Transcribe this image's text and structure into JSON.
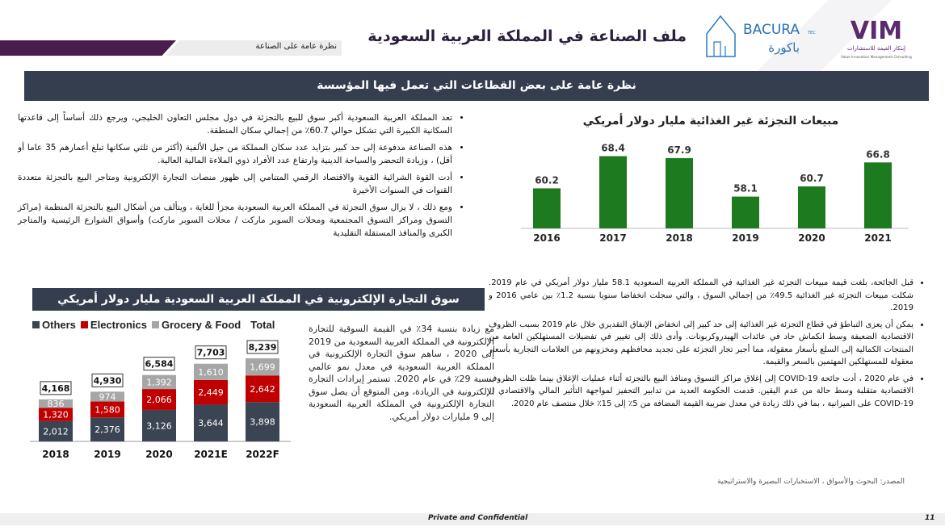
{
  "header": {
    "title": "ملف الصناعة في المملكة العربية السعودية",
    "subtitle": "نظرة عامة على الصناعة",
    "logo_bacura": "BACURA TEC باكورة التقنيات",
    "logo_vim": "VIM إبتكار القيمة للاستشارات Value Innovation Management Consulting"
  },
  "section_title": "نظرة عامة على بعض القطاعات التي تعمل فيها المؤسسة",
  "bullets_top": [
    "تعد المملكة العربية السعودية أكبر سوق للبيع بالتجزئة في دول مجلس التعاون الخليجي، ويرجع ذلك أساساً إلى قاعدتها السكانية الكبيرة التي تشكل حوالي 60.7٪ من إجمالي سكان المنطقة.",
    "هذه الصناعة مدفوعة إلى حد كبير بتزايد عدد سكان المملكة من جيل الألفية (أكثر من ثلثي سكانها تبلغ أعمارهم 35 عاما أو أقل) ، وزيادة التحضر والسياحة الدينية وارتفاع عدد الأفراد ذوي الملاءة المالية العالية.",
    "أدت القوة الشرائية القوية والاقتصاد الرقمي المتنامي إلى ظهور منصات التجارة الإلكترونية ومتاجر البيع بالتجزئة متعددة القنوات في السنوات الأخيرة",
    "ومع ذلك ، لا يزال سوق التجزئة في المملكة العربية السعودية مجزأ للغاية ، ويتألف من أشكال البيع بالتجزئة المنظمة (مراكز التسوق ومراكز التسوق المجتمعية ومحلات السوبر ماركت / محلات السوبر ماركت) وأسواق الشوارع الرئيسية والمتاجر الكبرى والمنافذ المستقلة التقليدية"
  ],
  "bullets_bottom": [
    "قبل الجائحة، بلغت قيمة مبيعات التجزئة غير الغذائية في المملكة العربية السعودية 58.1 مليار دولار أمريكي في عام 2019. شكلت مبيعات التجزئة غير الغذائية 49.5٪ من إجمالي السوق ، والتي سجلت انخفاضا سنويا بنسبة 1.2٪ بين عامي 2016 و 2019.",
    "يمكن أن يعزى التباطؤ في قطاع التجزئة غير الغذائية إلى حد كبير إلى انخفاض الإنفاق التقديري خلال عام 2019 بسبب الظروف الاقتصادية الضعيفة وسط انكماش حاد في عائدات الهيدروكربونات. وأدى ذلك إلى تغيير في تفضيلات المستهلكين العامة من المنتجات الكمالية إلى السلع بأسعار معقولة، مما أجبر تجار التجزئة على تجديد محافظهم ومخزونهم من العلامات التجارية بأسعار معقولة للمستهلكين المهتمين بالسعر والقيمة.",
    "في عام 2020 ، أدت جائحة COVID-19 إلى إغلاق مراكز التسوق ومنافذ البيع بالتجزئة أثناء عمليات الإغلاق بينما ظلت الظروف الاقتصادية متقلبة وسط حالة من عدم اليقين. قدمت الحكومة العديد من تدابير التحفيز لمواجهة التأثير المالي والاقتصادي ل COVID-19 على الميزانية ، بما في ذلك زيادة في معدل ضريبة القيمة المضافة من 5٪ إلى 15٪ خلال منتصف عام 2020."
  ],
  "ecommerce_title": "سوق التجارة الإلكترونية في المملكة العربية السعودية مليار دولار أمريكي",
  "ecommerce_text": "مع زيادة بنسبة 34٪ في القيمة السوقية للتجارة الإلكترونية في المملكة العربية السعودية من 2019 إلى 2020 ، ساهم سوق التجارة الإلكترونية في المملكة العربية السعودية في معدل نمو عالمي بنسبة 29٪ في عام 2020. تستمر إيرادات التجارة الإلكترونية في الزيادة، ومن المتوقع أن يصل سوق التجارة الإلكترونية في المملكة العربية السعودية إلى 9 مليارات دولار أمريكي.",
  "source": "المصدر: البحوث والأسواق ، الاستخبارات البصيرة والاستراتيجية",
  "footer": {
    "confidential": "Private and Confidential",
    "page": "11"
  },
  "chart_data": [
    {
      "type": "bar",
      "title": "مبيعات التجزئة غير الغذائية مليار دولار أمريكي",
      "categories": [
        "2016",
        "2017",
        "2018",
        "2019",
        "2020",
        "2021"
      ],
      "values": [
        60.2,
        68.4,
        67.9,
        58.1,
        60.7,
        66.8
      ],
      "ylim": [
        50,
        72
      ],
      "color": "#1e7a1e",
      "grid": false
    },
    {
      "type": "bar",
      "stacked": true,
      "title": "سوق التجارة الإلكترونية في المملكة العربية السعودية مليار دولار أمريكي",
      "categories": [
        "2018",
        "2019",
        "2020",
        "2021E",
        "2022F"
      ],
      "series": [
        {
          "name": "Others",
          "values": [
            2012,
            2376,
            3126,
            3644,
            3898
          ],
          "color": "#3a4452"
        },
        {
          "name": "Electronics",
          "values": [
            1320,
            1580,
            2066,
            2449,
            2642
          ],
          "color": "#c00000"
        },
        {
          "name": "Grocery & Food",
          "values": [
            836,
            974,
            1392,
            1610,
            1699
          ],
          "color": "#a6a6a6"
        }
      ],
      "totals": [
        "4,168",
        "4,930",
        "6,584",
        "7,703",
        "8,239"
      ],
      "total_label": "Total",
      "ylim": [
        0,
        9000
      ],
      "legend": "top"
    }
  ]
}
